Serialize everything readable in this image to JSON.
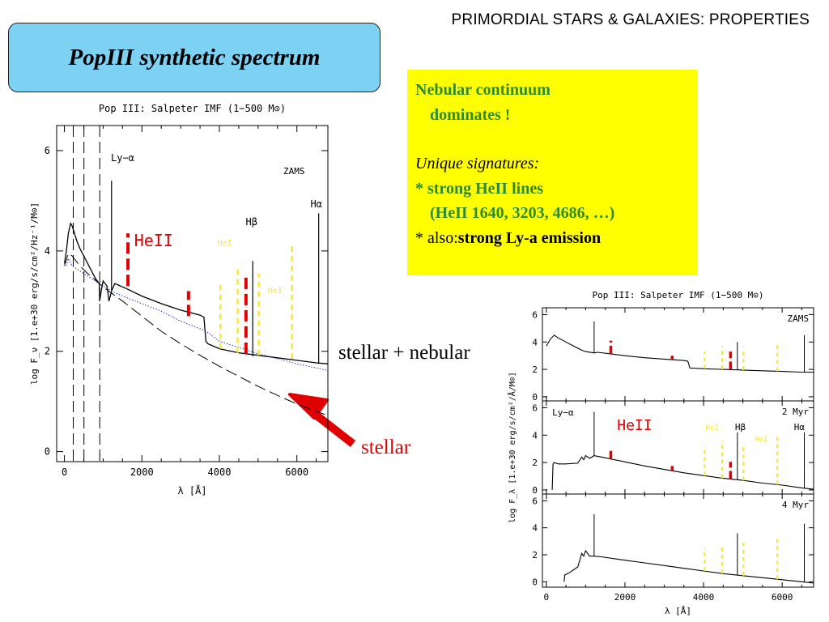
{
  "header": {
    "title": "PRIMORDIAL STARS & GALAXIES: PROPERTIES"
  },
  "title_box": {
    "text": "PopIII synthetic spectrum"
  },
  "info_box": {
    "line1": "Nebular continuum",
    "line2": "dominates !",
    "line3": "Unique signatures:",
    "line4": "* strong HeII lines",
    "line5": "(HeII 1640, 3203, 4686, …)",
    "line6_prefix": "* also:",
    "line6_bold": "strong Ly-a emission"
  },
  "labels": {
    "stellar_nebular": "stellar + nebular",
    "stellar": "stellar"
  },
  "colors": {
    "title_box": "#7dd1f2",
    "info_box": "#ffff00",
    "info_green": "#2e8b2e",
    "heii_red": "#e00000",
    "hei_yellow": "#f5e642",
    "arrow_red": "#e00000",
    "nebular_dotted": "#2b2bd0"
  },
  "chart_data": [
    {
      "type": "line",
      "title": "Pop III: Salpeter IMF (1−500 M⊙)",
      "xlabel": "λ [Å]",
      "ylabel": "log F_ν [1.e+30 erg/s/cm²/Hz⁻¹/M⊙]",
      "xlim": [
        -200,
        6800
      ],
      "ylim": [
        -0.2,
        6.5
      ],
      "xticks": [
        0,
        2000,
        4000,
        6000
      ],
      "yticks": [
        0,
        2,
        4,
        6
      ],
      "annotations": [
        "Ly−α",
        "ZAMS",
        "Hα",
        "Hβ",
        "HeII",
        "HeI",
        "HeI"
      ],
      "series": [
        {
          "name": "stellar + nebular",
          "style": "solid",
          "x": [
            0,
            50,
            100,
            160,
            200,
            260,
            320,
            400,
            500,
            600,
            700,
            800,
            900,
            910,
            950,
            1000,
            1100,
            1150,
            1216,
            1300,
            1600,
            2000,
            2500,
            3000,
            3500,
            3600,
            3650,
            3700,
            4000,
            4500,
            5000,
            5500,
            6000,
            6500,
            6800
          ],
          "y": [
            3.75,
            4.0,
            4.35,
            4.55,
            4.5,
            4.35,
            4.2,
            4.05,
            3.9,
            3.75,
            3.6,
            3.45,
            3.35,
            3.0,
            3.2,
            3.4,
            3.3,
            3.0,
            3.2,
            3.35,
            3.25,
            3.1,
            2.95,
            2.82,
            2.72,
            2.68,
            2.2,
            2.15,
            2.05,
            1.97,
            1.92,
            1.87,
            1.82,
            1.77,
            1.75
          ]
        },
        {
          "name": "nebular",
          "style": "dotted",
          "x": [
            50,
            100,
            200,
            400,
            700,
            900,
            1216,
            1500,
            2000,
            2500,
            3000,
            3500,
            3650,
            4000,
            5000,
            6000,
            6800
          ],
          "y": [
            3.7,
            3.85,
            3.7,
            3.6,
            3.45,
            3.35,
            3.2,
            3.1,
            2.95,
            2.8,
            2.6,
            2.45,
            2.4,
            2.2,
            1.95,
            1.75,
            1.62
          ]
        },
        {
          "name": "stellar",
          "style": "dashed",
          "x": [
            0,
            100,
            200,
            300,
            400,
            600,
            800,
            900,
            1000,
            1500,
            2000,
            2500,
            3000,
            3500,
            4000,
            4500,
            5000,
            5500,
            6000,
            6500,
            6800
          ],
          "y": [
            3.7,
            3.95,
            3.9,
            3.8,
            3.7,
            3.55,
            3.42,
            3.35,
            3.28,
            3.0,
            2.7,
            2.4,
            2.15,
            1.92,
            1.7,
            1.5,
            1.3,
            1.12,
            0.95,
            0.8,
            0.72
          ]
        }
      ],
      "vertical_lines": [
        {
          "label": "Ly−α",
          "x": 1216,
          "y0": 3.2,
          "y1": 5.4,
          "color": "#000000"
        },
        {
          "label": "Hβ",
          "x": 4861,
          "y0": 1.9,
          "y1": 3.8,
          "color": "#000000"
        },
        {
          "label": "Hα",
          "x": 6563,
          "y0": 1.75,
          "y1": 4.75,
          "color": "#000000"
        },
        {
          "label": "HeII",
          "x": 1640,
          "y0": 3.3,
          "y1": 4.35,
          "color": "#e00000",
          "dashed": true
        },
        {
          "label": "HeII",
          "x": 3203,
          "y0": 2.7,
          "y1": 3.2,
          "color": "#e00000",
          "dashed": true
        },
        {
          "label": "HeII",
          "x": 4686,
          "y0": 1.95,
          "y1": 3.5,
          "color": "#e00000",
          "dashed": true
        },
        {
          "label": "HeI",
          "x": 4026,
          "y0": 2.05,
          "y1": 3.4,
          "color": "#f5e642",
          "dashed": true
        },
        {
          "label": "HeI",
          "x": 4471,
          "y0": 1.97,
          "y1": 3.65,
          "color": "#f5e642",
          "dashed": true
        },
        {
          "label": "HeI",
          "x": 5016,
          "y0": 1.92,
          "y1": 3.55,
          "color": "#f5e642",
          "dashed": true
        },
        {
          "label": "HeI",
          "x": 5876,
          "y0": 1.85,
          "y1": 4.1,
          "color": "#f5e642",
          "dashed": true
        }
      ],
      "ionization_edges_x": [
        228,
        504,
        912
      ]
    },
    {
      "type": "line",
      "title": "Pop III: Salpeter IMF (1−500 M⊙)",
      "xlabel": "λ [Å]",
      "ylabel": "log F_λ [1.e+30 erg/s/cm²/Å/M⊙]",
      "xlim": [
        -100,
        6800
      ],
      "xticks": [
        0,
        2000,
        4000,
        6000
      ],
      "panels": [
        {
          "label": "ZAMS",
          "ylim": [
            -0.3,
            6.5
          ],
          "yticks": [
            0,
            2,
            4,
            6
          ],
          "x": [
            0,
            100,
            200,
            300,
            500,
            700,
            900,
            1000,
            1216,
            1300,
            1600,
            2000,
            2500,
            3000,
            3500,
            3600,
            3650,
            4000,
            4500,
            5000,
            5500,
            6000,
            6500,
            6800
          ],
          "y": [
            3.7,
            4.2,
            4.5,
            4.3,
            4.0,
            3.7,
            3.4,
            3.3,
            3.2,
            3.25,
            3.15,
            3.0,
            2.85,
            2.75,
            2.65,
            2.6,
            2.1,
            2.05,
            2.0,
            1.95,
            1.9,
            1.85,
            1.8,
            1.8
          ],
          "lines": [
            {
              "x": 1216,
              "y1": 5.5
            },
            {
              "x": 4861,
              "y1": 4.0
            },
            {
              "x": 6563,
              "y1": 4.5
            }
          ],
          "heii": [
            {
              "x": 1640,
              "y1": 4.1
            },
            {
              "x": 3203,
              "y1": 3.0
            },
            {
              "x": 4686,
              "y1": 3.3
            }
          ],
          "hei": [
            {
              "x": 4026,
              "y1": 3.3
            },
            {
              "x": 4471,
              "y1": 3.7
            },
            {
              "x": 5016,
              "y1": 3.6
            },
            {
              "x": 5876,
              "y1": 4.0
            }
          ]
        },
        {
          "label": "2 Myr",
          "ylim": [
            -0.3,
            6.5
          ],
          "yticks": [
            0,
            2,
            4,
            6
          ],
          "annotations": [
            "Ly−α",
            "HeII",
            "HeI",
            "Hβ",
            "HeI",
            "Hα"
          ],
          "x": [
            150,
            170,
            200,
            300,
            500,
            800,
            900,
            950,
            1000,
            1100,
            1216,
            1400,
            2000,
            2500,
            3000,
            3500,
            4000,
            4500,
            5000,
            5500,
            6000,
            6500,
            6800
          ],
          "y": [
            0,
            1.9,
            2.0,
            1.9,
            1.9,
            1.95,
            2.4,
            2.2,
            2.5,
            2.3,
            2.5,
            2.4,
            2.05,
            1.75,
            1.5,
            1.25,
            1.05,
            0.85,
            0.7,
            0.5,
            0.35,
            0.15,
            0.05
          ],
          "lines": [
            {
              "x": 1216,
              "y1": 5.7
            },
            {
              "x": 4861,
              "y1": 4.2
            },
            {
              "x": 6563,
              "y1": 4.2
            }
          ],
          "heii": [
            {
              "x": 1640,
              "y1": 2.9
            },
            {
              "x": 3203,
              "y1": 1.75
            },
            {
              "x": 4686,
              "y1": 2.05
            }
          ],
          "hei": [
            {
              "x": 4026,
              "y1": 3.2
            },
            {
              "x": 4471,
              "y1": 3.6
            },
            {
              "x": 5016,
              "y1": 3.3
            },
            {
              "x": 5876,
              "y1": 3.9
            }
          ]
        },
        {
          "label": "4 Myr",
          "ylim": [
            -0.4,
            6.5
          ],
          "yticks": [
            0,
            2,
            4,
            6
          ],
          "x": [
            450,
            470,
            600,
            800,
            900,
            950,
            1000,
            1100,
            1216,
            1400,
            2000,
            2500,
            3000,
            3500,
            4000,
            4500,
            5000,
            5500,
            6000,
            6500,
            6800
          ],
          "y": [
            0,
            0.5,
            0.7,
            1.1,
            2.1,
            1.9,
            2.3,
            1.9,
            1.9,
            1.85,
            1.6,
            1.4,
            1.2,
            1.0,
            0.8,
            0.6,
            0.45,
            0.3,
            0.15,
            0.0,
            -0.1
          ],
          "lines": [
            {
              "x": 1216,
              "y1": 5.0
            },
            {
              "x": 4861,
              "y1": 3.6
            },
            {
              "x": 6563,
              "y1": 4.3
            }
          ],
          "hei": [
            {
              "x": 4026,
              "y1": 2.5
            },
            {
              "x": 4471,
              "y1": 2.6
            },
            {
              "x": 5016,
              "y1": 2.9
            },
            {
              "x": 5876,
              "y1": 3.4
            }
          ]
        }
      ]
    }
  ]
}
